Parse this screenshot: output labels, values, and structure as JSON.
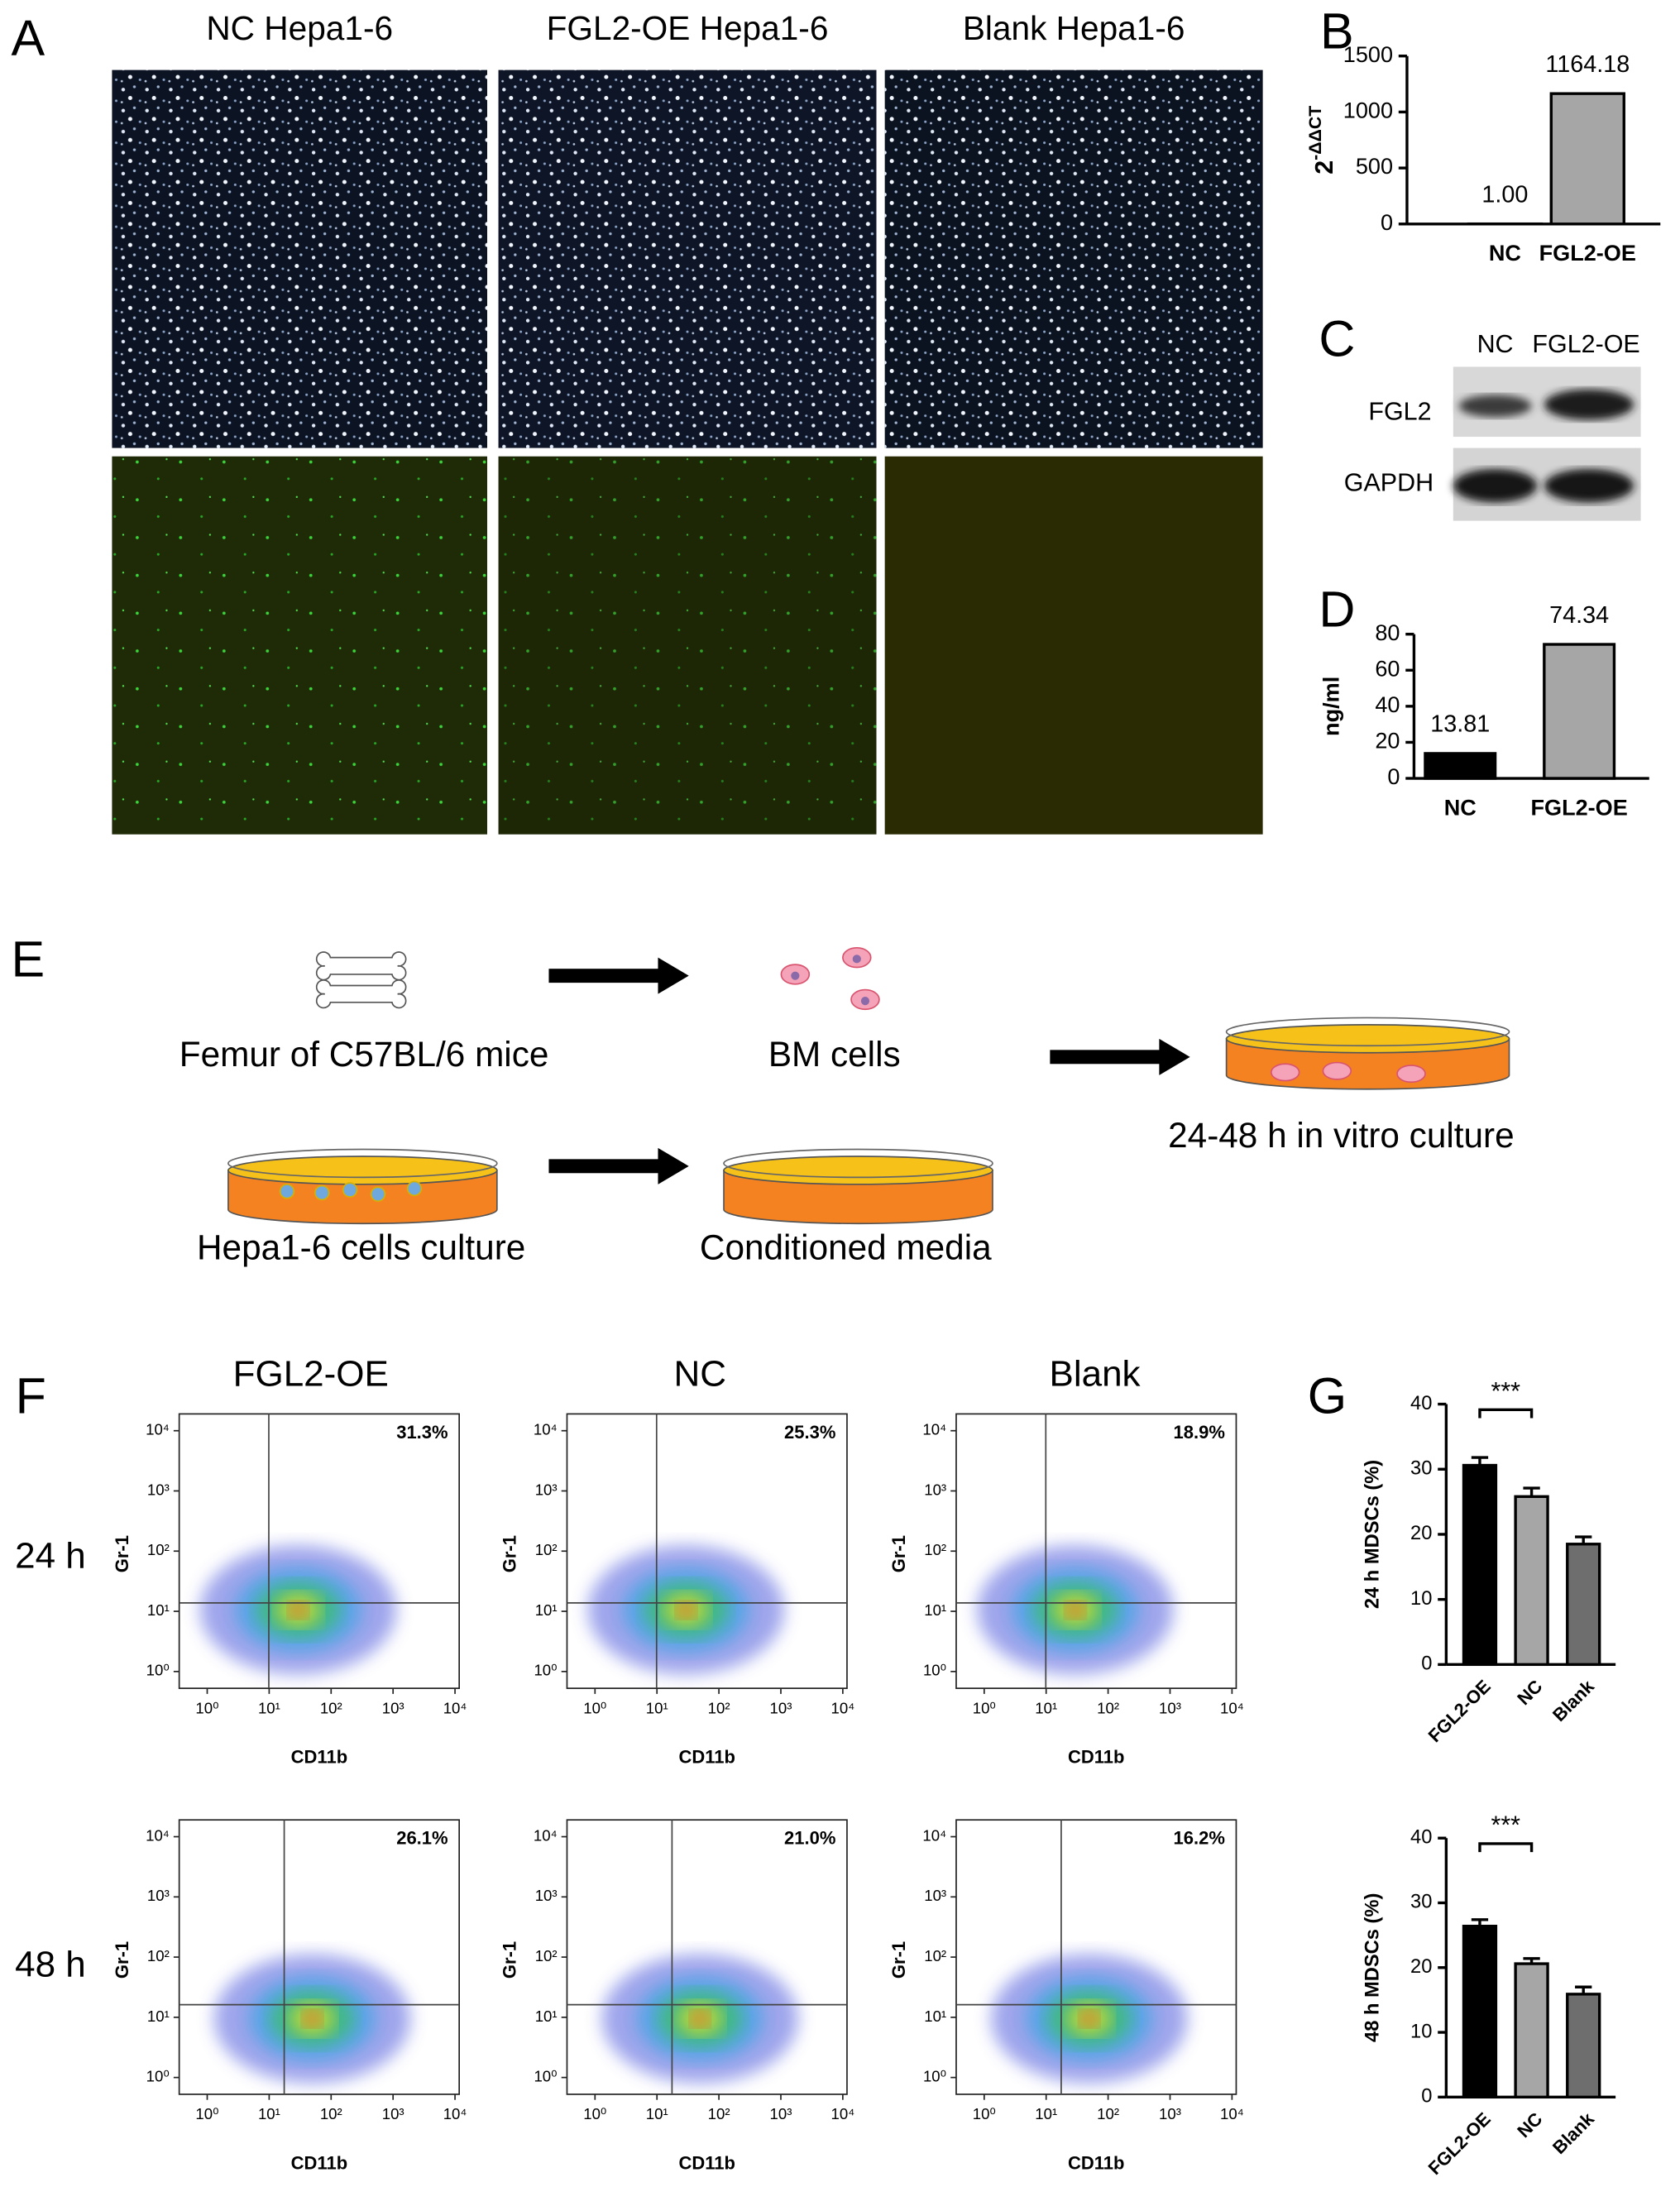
{
  "panel_labels": [
    "A",
    "B",
    "C",
    "D",
    "E",
    "F",
    "G"
  ],
  "panel_a": {
    "columns": [
      "NC Hepa1-6",
      "FGL2-OE Hepa1-6",
      "Blank Hepa1-6"
    ]
  },
  "panel_c": {
    "columns": [
      "NC",
      "FGL2-OE"
    ],
    "rows": [
      "FGL2",
      "GAPDH"
    ]
  },
  "panel_e": {
    "steps": [
      "Femur of C57BL/6 mice",
      "BM cells",
      "24-48 h in vitro culture",
      "Hepa1-6 cells culture",
      "Conditioned media"
    ]
  },
  "panel_f": {
    "columns": [
      "FGL2-OE",
      "NC",
      "Blank"
    ],
    "rows": [
      "24 h",
      "48 h"
    ],
    "x_label": "CD11b",
    "y_label": "Gr-1",
    "log_scale": true,
    "ticks": [
      {
        "value": 1,
        "label": "10⁰"
      },
      {
        "value": 10,
        "label": "10¹"
      },
      {
        "value": 100,
        "label": "10²"
      },
      {
        "value": 1000,
        "label": "10³"
      },
      {
        "value": 10000,
        "label": "10⁴"
      }
    ],
    "percentages": [
      [
        "31.3%",
        "25.3%",
        "18.9%"
      ],
      [
        "26.1%",
        "21.0%",
        "16.2%"
      ]
    ]
  },
  "chart_data": [
    {
      "type": "bar",
      "y_label": {
        "base": "2",
        "superscript": "-ΔΔCT"
      },
      "categories": [
        "NC",
        "FGL2-OE"
      ],
      "values": [
        1,
        1164.18
      ],
      "value_labels": [
        "1.00",
        "1164.18"
      ],
      "colors": [
        "#000000",
        "#a6a6a6"
      ],
      "ylim": [
        0,
        1500
      ],
      "yticks": [
        0,
        500,
        1000,
        1500
      ]
    },
    {
      "type": "bar",
      "y_label": "ng/ml",
      "categories": [
        "NC",
        "FGL2-OE"
      ],
      "values": [
        13.81,
        74.34
      ],
      "value_labels": [
        "13.81",
        "74.34"
      ],
      "colors": [
        "#000000",
        "#a6a6a6"
      ],
      "ylim": [
        0,
        80
      ],
      "yticks": [
        0,
        20,
        40,
        60,
        80
      ]
    },
    {
      "type": "bar",
      "y_label": "24 h MDSCs (%)",
      "categories": [
        "FGL2-OE",
        "NC",
        "Blank"
      ],
      "values": [
        30.6,
        25.8,
        18.5
      ],
      "errors": [
        1.2,
        1.3,
        1.1
      ],
      "colors": [
        "#000000",
        "#a6a6a6",
        "#6e6e6e"
      ],
      "ylim": [
        0,
        40
      ],
      "yticks": [
        0,
        10,
        20,
        30,
        40
      ],
      "annotations": [
        "***"
      ]
    },
    {
      "type": "bar",
      "y_label": "48 h MDSCs (%)",
      "categories": [
        "FGL2-OE",
        "NC",
        "Blank"
      ],
      "values": [
        26.4,
        20.6,
        15.9
      ],
      "errors": [
        1.0,
        0.8,
        1.1
      ],
      "colors": [
        "#000000",
        "#a6a6a6",
        "#6e6e6e"
      ],
      "ylim": [
        0,
        40
      ],
      "yticks": [
        0,
        10,
        20,
        30,
        40
      ],
      "annotations": [
        "***"
      ]
    }
  ]
}
